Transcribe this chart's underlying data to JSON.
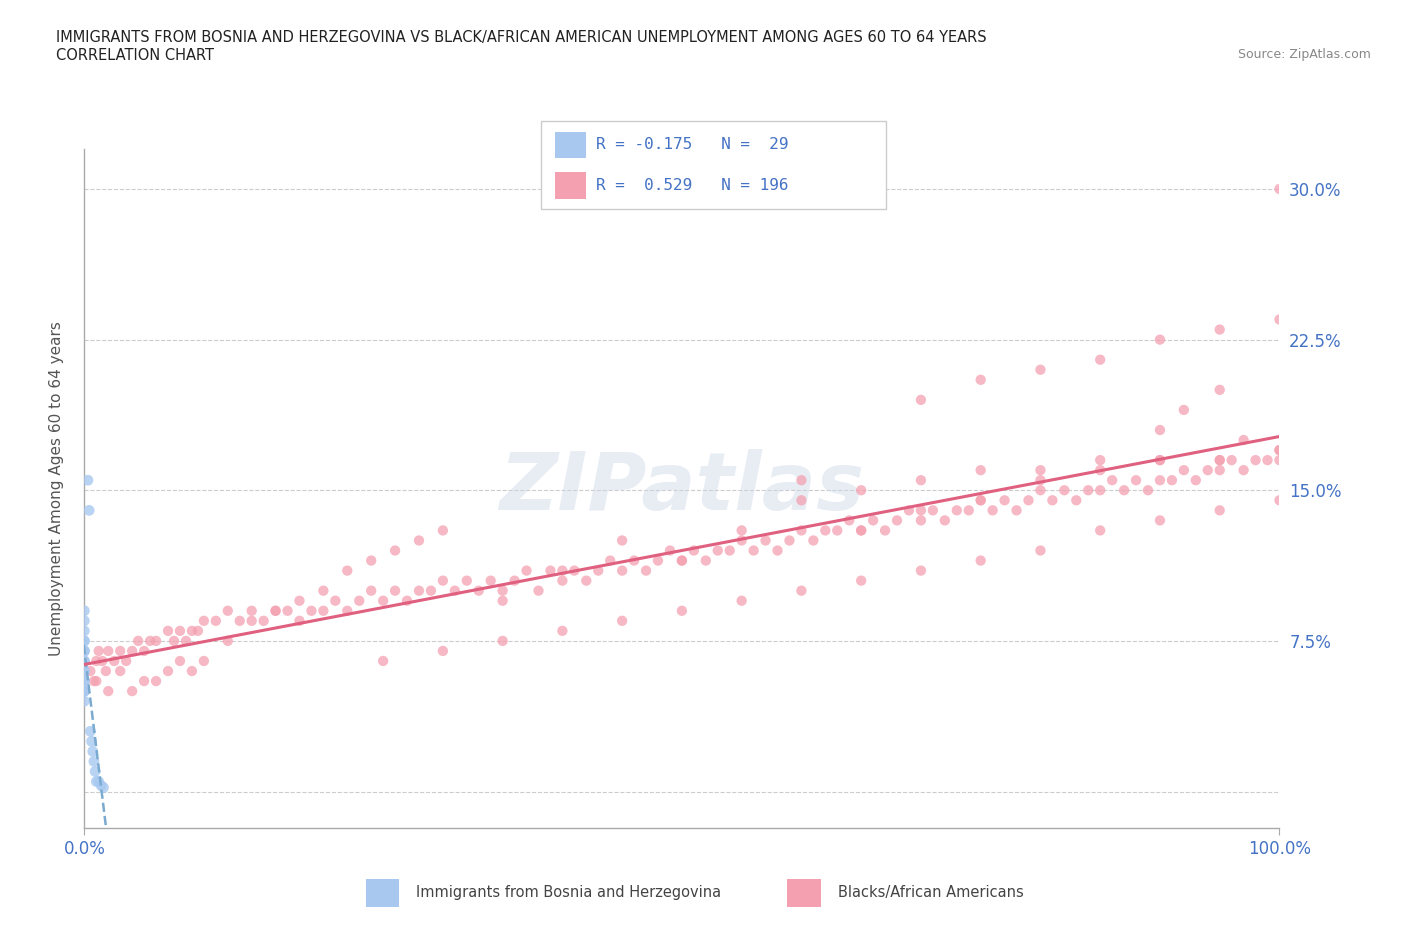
{
  "title_line1": "IMMIGRANTS FROM BOSNIA AND HERZEGOVINA VS BLACK/AFRICAN AMERICAN UNEMPLOYMENT AMONG AGES 60 TO 64 YEARS",
  "title_line2": "CORRELATION CHART",
  "source_text": "Source: ZipAtlas.com",
  "ylabel": "Unemployment Among Ages 60 to 64 years",
  "xlim": [
    0.0,
    1.0
  ],
  "ylim": [
    -0.018,
    0.32
  ],
  "yticks": [
    0.0,
    0.075,
    0.15,
    0.225,
    0.3
  ],
  "ytick_labels": [
    "",
    "7.5%",
    "15.0%",
    "22.5%",
    "30.0%"
  ],
  "xtick_labels": [
    "0.0%",
    "100.0%"
  ],
  "watermark": "ZIPatlas",
  "color_bosnia": "#a8c8f0",
  "color_black": "#f4a0b0",
  "color_blue_text": "#4472c4",
  "trendline_bosnia_color": "#7aaad0",
  "trendline_black_color": "#e06080",
  "bosnia_x": [
    0.0,
    0.0,
    0.0,
    0.0,
    0.0,
    0.0,
    0.0,
    0.0,
    0.0,
    0.0,
    0.0,
    0.0,
    0.0,
    0.0,
    0.0,
    0.0,
    0.0,
    0.0,
    0.003,
    0.004,
    0.005,
    0.006,
    0.007,
    0.008,
    0.009,
    0.01,
    0.012,
    0.014,
    0.016
  ],
  "bosnia_y": [
    0.055,
    0.06,
    0.065,
    0.07,
    0.07,
    0.075,
    0.075,
    0.08,
    0.085,
    0.09,
    0.05,
    0.05,
    0.045,
    0.05,
    0.055,
    0.06,
    0.065,
    0.07,
    0.155,
    0.14,
    0.03,
    0.025,
    0.02,
    0.015,
    0.01,
    0.005,
    0.005,
    0.003,
    0.002
  ],
  "black_x": [
    0.0,
    0.005,
    0.008,
    0.01,
    0.012,
    0.015,
    0.018,
    0.02,
    0.025,
    0.03,
    0.035,
    0.04,
    0.045,
    0.05,
    0.055,
    0.06,
    0.07,
    0.075,
    0.08,
    0.085,
    0.09,
    0.095,
    0.1,
    0.11,
    0.12,
    0.13,
    0.14,
    0.15,
    0.16,
    0.17,
    0.18,
    0.19,
    0.2,
    0.21,
    0.22,
    0.23,
    0.24,
    0.25,
    0.26,
    0.27,
    0.28,
    0.29,
    0.3,
    0.31,
    0.32,
    0.33,
    0.34,
    0.35,
    0.36,
    0.37,
    0.38,
    0.39,
    0.4,
    0.41,
    0.42,
    0.43,
    0.44,
    0.45,
    0.46,
    0.47,
    0.48,
    0.49,
    0.5,
    0.51,
    0.52,
    0.53,
    0.54,
    0.55,
    0.56,
    0.57,
    0.58,
    0.59,
    0.6,
    0.61,
    0.62,
    0.63,
    0.64,
    0.65,
    0.66,
    0.67,
    0.68,
    0.69,
    0.7,
    0.71,
    0.72,
    0.73,
    0.74,
    0.75,
    0.76,
    0.77,
    0.78,
    0.79,
    0.8,
    0.81,
    0.82,
    0.83,
    0.84,
    0.85,
    0.86,
    0.87,
    0.88,
    0.89,
    0.9,
    0.91,
    0.92,
    0.93,
    0.94,
    0.95,
    0.96,
    0.97,
    0.98,
    0.99,
    1.0,
    0.01,
    0.02,
    0.03,
    0.04,
    0.05,
    0.06,
    0.07,
    0.08,
    0.09,
    0.1,
    0.12,
    0.14,
    0.16,
    0.18,
    0.2,
    0.22,
    0.24,
    0.26,
    0.28,
    0.3,
    0.35,
    0.4,
    0.45,
    0.5,
    0.55,
    0.6,
    0.65,
    0.7,
    0.75,
    0.8,
    0.85,
    0.9,
    0.95,
    1.0,
    0.25,
    0.3,
    0.35,
    0.4,
    0.45,
    0.5,
    0.55,
    0.6,
    0.65,
    0.7,
    0.75,
    0.8,
    0.85,
    0.9,
    0.95,
    1.0,
    0.6,
    0.65,
    0.7,
    0.75,
    0.8,
    0.85,
    0.9,
    0.95,
    1.0,
    0.7,
    0.75,
    0.8,
    0.85,
    0.9,
    0.95,
    1.0,
    0.9,
    0.92,
    0.95,
    0.97,
    1.0
  ],
  "black_y": [
    0.065,
    0.06,
    0.055,
    0.065,
    0.07,
    0.065,
    0.06,
    0.07,
    0.065,
    0.07,
    0.065,
    0.07,
    0.075,
    0.07,
    0.075,
    0.075,
    0.08,
    0.075,
    0.08,
    0.075,
    0.08,
    0.08,
    0.085,
    0.085,
    0.09,
    0.085,
    0.09,
    0.085,
    0.09,
    0.09,
    0.085,
    0.09,
    0.09,
    0.095,
    0.09,
    0.095,
    0.1,
    0.095,
    0.1,
    0.095,
    0.1,
    0.1,
    0.105,
    0.1,
    0.105,
    0.1,
    0.105,
    0.1,
    0.105,
    0.11,
    0.1,
    0.11,
    0.105,
    0.11,
    0.105,
    0.11,
    0.115,
    0.11,
    0.115,
    0.11,
    0.115,
    0.12,
    0.115,
    0.12,
    0.115,
    0.12,
    0.12,
    0.125,
    0.12,
    0.125,
    0.12,
    0.125,
    0.13,
    0.125,
    0.13,
    0.13,
    0.135,
    0.13,
    0.135,
    0.13,
    0.135,
    0.14,
    0.135,
    0.14,
    0.135,
    0.14,
    0.14,
    0.145,
    0.14,
    0.145,
    0.14,
    0.145,
    0.15,
    0.145,
    0.15,
    0.145,
    0.15,
    0.15,
    0.155,
    0.15,
    0.155,
    0.15,
    0.155,
    0.155,
    0.16,
    0.155,
    0.16,
    0.16,
    0.165,
    0.16,
    0.165,
    0.165,
    0.17,
    0.055,
    0.05,
    0.06,
    0.05,
    0.055,
    0.055,
    0.06,
    0.065,
    0.06,
    0.065,
    0.075,
    0.085,
    0.09,
    0.095,
    0.1,
    0.11,
    0.115,
    0.12,
    0.125,
    0.13,
    0.095,
    0.11,
    0.125,
    0.115,
    0.13,
    0.145,
    0.15,
    0.155,
    0.16,
    0.16,
    0.165,
    0.165,
    0.165,
    0.165,
    0.065,
    0.07,
    0.075,
    0.08,
    0.085,
    0.09,
    0.095,
    0.1,
    0.105,
    0.11,
    0.115,
    0.12,
    0.13,
    0.135,
    0.14,
    0.145,
    0.155,
    0.13,
    0.14,
    0.145,
    0.155,
    0.16,
    0.165,
    0.165,
    0.17,
    0.195,
    0.205,
    0.21,
    0.215,
    0.225,
    0.23,
    0.235,
    0.18,
    0.19,
    0.2,
    0.175,
    0.3
  ]
}
